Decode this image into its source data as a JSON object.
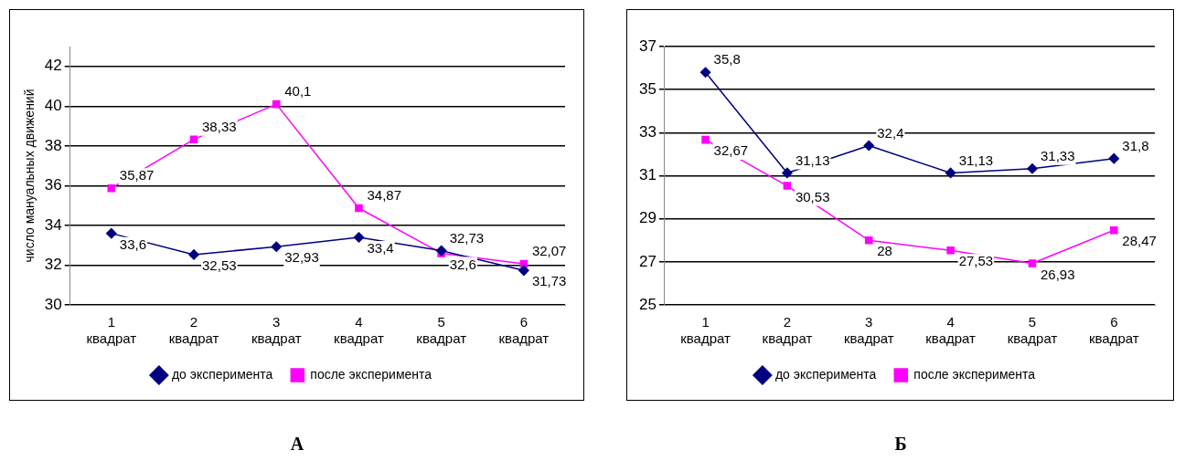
{
  "chart_data": [
    {
      "type": "line",
      "title": "А",
      "ylabel": "число мануальных движений",
      "categories": [
        "1 квадрат",
        "2 квадрат",
        "3 квадрат",
        "4 квадрат",
        "5 квадрат",
        "6 квадрат"
      ],
      "series": [
        {
          "name": "до эксперимента",
          "color": "#000080",
          "marker": "diamond",
          "values": [
            33.6,
            32.53,
            32.93,
            33.4,
            32.73,
            31.73
          ],
          "value_labels": [
            "33,6",
            "32,53",
            "32,93",
            "33,4",
            "32,73",
            "31,73"
          ]
        },
        {
          "name": "после эксперимента",
          "color": "#ff00ff",
          "marker": "square",
          "values": [
            35.87,
            38.33,
            40.1,
            34.87,
            32.6,
            32.07
          ],
          "value_labels": [
            "35,87",
            "38,33",
            "40,1",
            "34,87",
            "32,6",
            "32,07"
          ]
        }
      ],
      "ylim": [
        30,
        43
      ],
      "yticks": [
        30,
        32,
        34,
        36,
        38,
        40,
        42
      ],
      "grid": "y",
      "legend": "bottom"
    },
    {
      "type": "line",
      "title": "Б",
      "categories": [
        "1 квадрат",
        "2 квадрат",
        "3 квадрат",
        "4 квадрат",
        "5 квадрат",
        "6 квадрат"
      ],
      "series": [
        {
          "name": "до эксперимента",
          "color": "#000080",
          "marker": "diamond",
          "values": [
            35.8,
            31.13,
            32.4,
            31.13,
            31.33,
            31.8
          ],
          "value_labels": [
            "35,8",
            "31,13",
            "32,4",
            "31,13",
            "31,33",
            "31,8"
          ]
        },
        {
          "name": "после эксперимента",
          "color": "#ff00ff",
          "marker": "square",
          "values": [
            32.67,
            30.53,
            28,
            27.53,
            26.93,
            28.47
          ],
          "value_labels": [
            "32,67",
            "30,53",
            "28",
            "27,53",
            "26,93",
            "28,47"
          ]
        }
      ],
      "ylim": [
        25,
        37
      ],
      "yticks": [
        25,
        27,
        29,
        31,
        33,
        35,
        37
      ],
      "grid": "y",
      "legend": "bottom"
    }
  ]
}
